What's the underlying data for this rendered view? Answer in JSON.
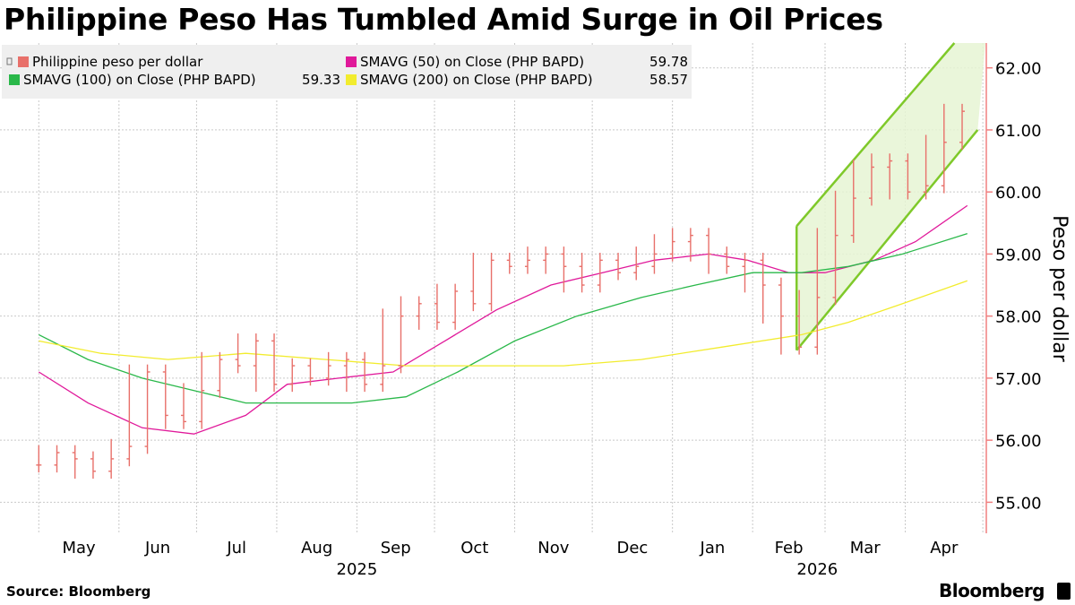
{
  "title": "Philippine Peso Has Tumbled Amid Surge in Oil Prices",
  "source": "Source: Bloomberg",
  "brand": "Bloomberg",
  "colors": {
    "price": "#e8706a",
    "sma50": "#e0199a",
    "sma100": "#2ab84a",
    "sma200": "#f2ec2e",
    "channel_line": "#7fc92a",
    "channel_fill": "#e6f5d3",
    "grid": "#c9c9c9",
    "axis": "#f08080",
    "legend_bg": "#efefef"
  },
  "chart_data": {
    "type": "line",
    "title": "Philippine Peso Has Tumbled Amid Surge in Oil Prices",
    "ylabel": "Peso per dollar",
    "xlabel": "",
    "ylim": [
      54.5,
      62.4
    ],
    "y_ticks": [
      "55.00",
      "56.00",
      "57.00",
      "58.00",
      "59.00",
      "60.00",
      "61.00",
      "62.00"
    ],
    "x_ticks": [
      "May",
      "Jun",
      "Jul",
      "Aug",
      "Sep",
      "Oct",
      "Nov",
      "Dec",
      "Jan",
      "Feb",
      "Mar",
      "Apr"
    ],
    "year_labels": [
      "2025",
      "2026"
    ],
    "grid": true,
    "legend_position": "top-left",
    "legend": [
      {
        "label": "Philippine peso per dollar",
        "value": ""
      },
      {
        "label": "SMAVG (50)  on Close (PHP BAPD)",
        "value": "59.78"
      },
      {
        "label": "SMAVG (100)  on Close (PHP BAPD)",
        "value": "59.33"
      },
      {
        "label": "SMAVG (200)  on Close (PHP BAPD)",
        "value": "58.57"
      }
    ],
    "series": [
      {
        "name": "Philippine peso per dollar",
        "style": "ohlc-bars",
        "x": [
          "2025-05-01",
          "2025-05-08",
          "2025-05-15",
          "2025-05-22",
          "2025-05-29",
          "2025-06-05",
          "2025-06-12",
          "2025-06-19",
          "2025-06-26",
          "2025-07-03",
          "2025-07-10",
          "2025-07-17",
          "2025-07-24",
          "2025-07-31",
          "2025-08-07",
          "2025-08-14",
          "2025-08-21",
          "2025-08-28",
          "2025-09-04",
          "2025-09-11",
          "2025-09-18",
          "2025-09-25",
          "2025-10-02",
          "2025-10-09",
          "2025-10-16",
          "2025-10-23",
          "2025-10-30",
          "2025-11-06",
          "2025-11-13",
          "2025-11-20",
          "2025-11-27",
          "2025-12-04",
          "2025-12-11",
          "2025-12-18",
          "2025-12-25",
          "2026-01-01",
          "2026-01-08",
          "2026-01-15",
          "2026-01-22",
          "2026-01-29",
          "2026-02-05",
          "2026-02-12",
          "2026-02-19",
          "2026-02-26",
          "2026-03-05",
          "2026-03-12",
          "2026-03-19",
          "2026-03-26",
          "2026-04-02",
          "2026-04-09",
          "2026-04-16",
          "2026-04-23"
        ],
        "values": [
          55.6,
          55.8,
          55.7,
          55.5,
          55.7,
          55.9,
          57.1,
          56.4,
          56.3,
          56.8,
          57.3,
          57.2,
          57.6,
          56.9,
          57.2,
          57.0,
          57.2,
          57.3,
          56.9,
          57.2,
          58.0,
          58.2,
          57.9,
          58.4,
          58.2,
          58.9,
          58.8,
          58.9,
          59.0,
          58.8,
          58.5,
          58.9,
          58.7,
          58.8,
          59.0,
          59.2,
          59.3,
          59.0,
          58.8,
          58.9,
          58.5,
          58.0,
          57.5,
          58.3,
          59.3,
          59.9,
          60.4,
          60.5,
          60.0,
          60.1,
          60.8,
          61.3
        ]
      },
      {
        "name": "SMAVG (50)  on Close (PHP BAPD)",
        "x": [
          "2025-05-01",
          "2025-05-20",
          "2025-06-10",
          "2025-06-30",
          "2025-07-20",
          "2025-08-05",
          "2025-08-25",
          "2025-09-15",
          "2025-10-05",
          "2025-10-25",
          "2025-11-15",
          "2025-12-05",
          "2025-12-25",
          "2026-01-15",
          "2026-01-30",
          "2026-02-15",
          "2026-03-01",
          "2026-03-20",
          "2026-04-05",
          "2026-04-25"
        ],
        "values": [
          57.1,
          56.6,
          56.2,
          56.1,
          56.4,
          56.9,
          57.0,
          57.1,
          57.6,
          58.1,
          58.5,
          58.7,
          58.9,
          59.0,
          58.9,
          58.7,
          58.7,
          58.9,
          59.2,
          59.78
        ]
      },
      {
        "name": "SMAVG (100)  on Close (PHP BAPD)",
        "x": [
          "2025-05-01",
          "2025-05-20",
          "2025-06-10",
          "2025-06-30",
          "2025-07-20",
          "2025-08-10",
          "2025-08-30",
          "2025-09-20",
          "2025-10-10",
          "2025-11-01",
          "2025-11-25",
          "2025-12-20",
          "2026-01-10",
          "2026-02-01",
          "2026-02-20",
          "2026-03-10",
          "2026-03-31",
          "2026-04-25"
        ],
        "values": [
          57.7,
          57.3,
          57.0,
          56.8,
          56.6,
          56.6,
          56.6,
          56.7,
          57.1,
          57.6,
          58.0,
          58.3,
          58.5,
          58.7,
          58.7,
          58.8,
          59.0,
          59.33
        ]
      },
      {
        "name": "SMAVG (200)  on Close (PHP BAPD)",
        "x": [
          "2025-05-01",
          "2025-05-25",
          "2025-06-20",
          "2025-07-20",
          "2025-08-20",
          "2025-09-20",
          "2025-10-20",
          "2025-11-20",
          "2025-12-20",
          "2026-01-20",
          "2026-02-20",
          "2026-03-10",
          "2026-03-31",
          "2026-04-25"
        ],
        "values": [
          57.6,
          57.4,
          57.3,
          57.4,
          57.3,
          57.2,
          57.2,
          57.2,
          57.3,
          57.5,
          57.7,
          57.9,
          58.2,
          58.57
        ]
      }
    ],
    "channel": {
      "upper": {
        "x": [
          "2026-02-18",
          "2026-04-20"
        ],
        "values": [
          59.45,
          62.4
        ]
      },
      "lower": {
        "x": [
          "2026-02-18",
          "2026-04-29"
        ],
        "values": [
          57.45,
          61.0
        ]
      }
    }
  }
}
